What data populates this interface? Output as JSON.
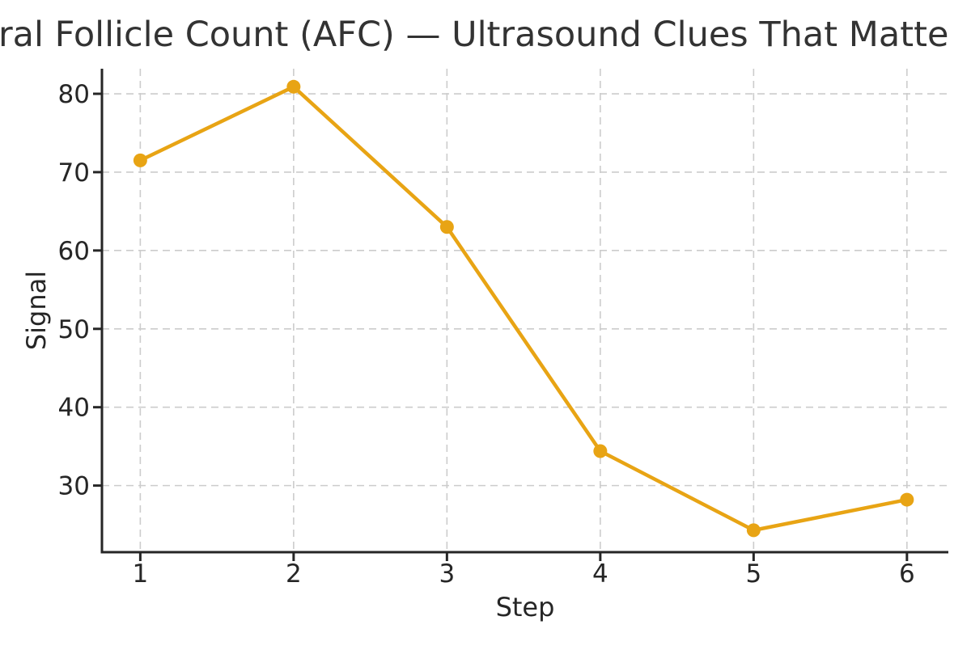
{
  "chart_data": {
    "type": "line",
    "title": "ral Follicle Count (AFC) — Ultrasound Clues That Matte",
    "xlabel": "Step",
    "ylabel": "Signal",
    "x": [
      1,
      2,
      3,
      4,
      5,
      6
    ],
    "series": [
      {
        "name": "Signal",
        "values": [
          71.5,
          80.9,
          63.0,
          34.4,
          24.3,
          28.2
        ]
      }
    ],
    "x_ticks": [
      1,
      2,
      3,
      4,
      5,
      6
    ],
    "y_ticks": [
      30,
      40,
      50,
      60,
      70,
      80
    ],
    "xlim": [
      0.75,
      6.27
    ],
    "ylim": [
      21.5,
      83.2
    ],
    "grid": true,
    "grid_style": "dashed",
    "legend_position": "none",
    "colors": {
      "line": "#E8A414",
      "marker": "#E8A414",
      "grid": "#cccccc",
      "spine": "#262626",
      "text": "#262626"
    }
  }
}
